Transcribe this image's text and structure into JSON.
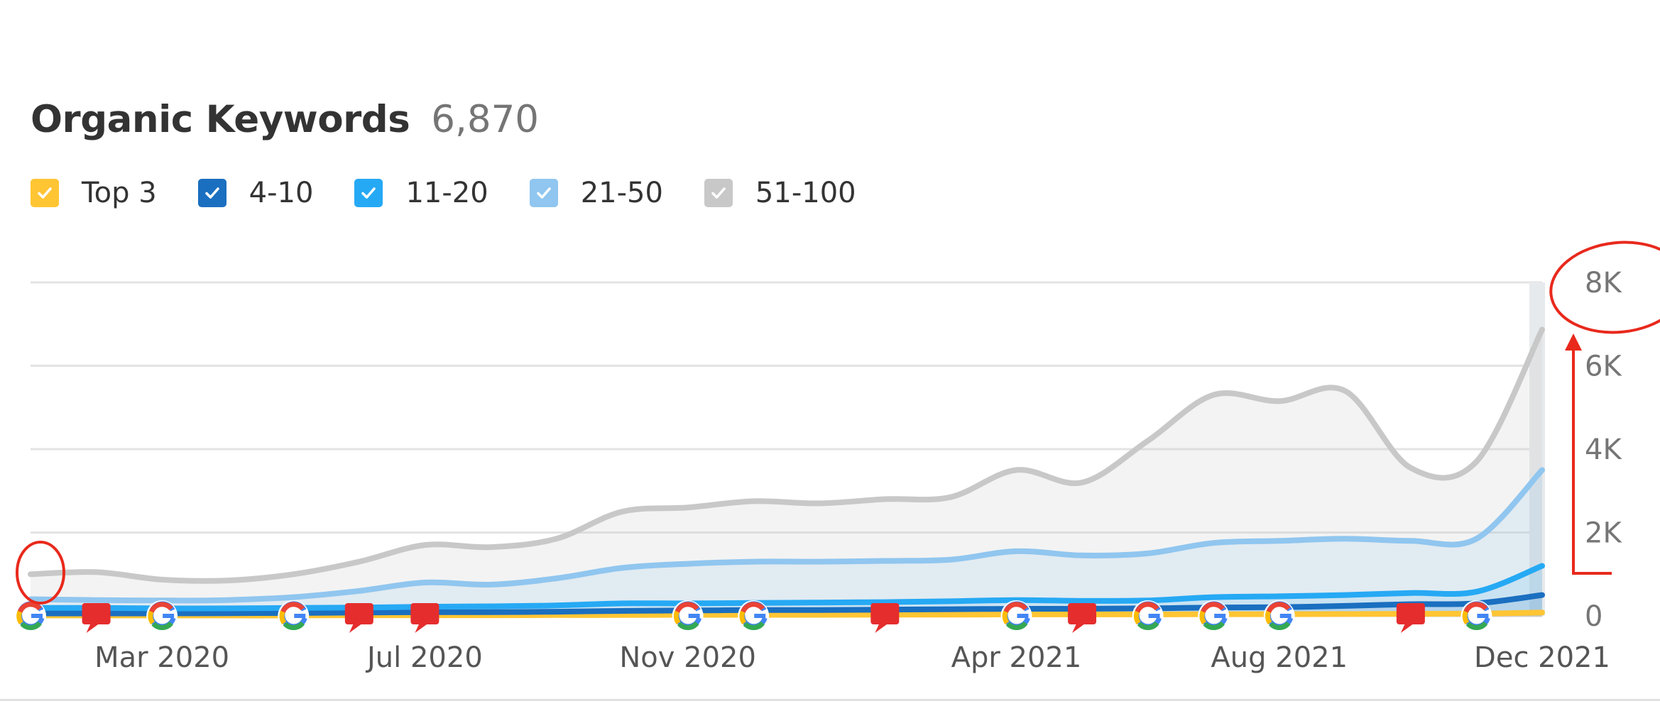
{
  "header": {
    "title": "Organic Keywords",
    "total": "6,870"
  },
  "legend": [
    {
      "label": "Top 3",
      "color": "#ffc533",
      "checked": true
    },
    {
      "label": "4-10",
      "color": "#1a6fc0",
      "checked": true
    },
    {
      "label": "11-20",
      "color": "#26a9f4",
      "checked": true
    },
    {
      "label": "21-50",
      "color": "#90c6ef",
      "checked": true
    },
    {
      "label": "51-100",
      "color": "#c8c8c8",
      "checked": true
    }
  ],
  "chart_data": {
    "type": "area",
    "title": "Organic Keywords",
    "x_ticks": [
      "Mar 2020",
      "Jul 2020",
      "Nov 2020",
      "Apr 2021",
      "Aug 2021",
      "Dec 2021"
    ],
    "y_ticks": [
      "0",
      "2K",
      "4K",
      "6K",
      "8K"
    ],
    "ylim": [
      0,
      8000
    ],
    "y_axis_side": "right",
    "grid": true,
    "x": [
      "2020-01",
      "2020-02",
      "2020-03",
      "2020-04",
      "2020-05",
      "2020-06",
      "2020-07",
      "2020-08",
      "2020-09",
      "2020-10",
      "2020-11",
      "2020-12",
      "2021-01",
      "2021-02",
      "2021-03",
      "2021-04",
      "2021-05",
      "2021-06",
      "2021-07",
      "2021-08",
      "2021-09",
      "2021-10",
      "2021-11",
      "2021-12"
    ],
    "series": [
      {
        "name": "51-100",
        "color": "#c8c8c8",
        "values": [
          1000,
          1050,
          870,
          850,
          1000,
          1300,
          1700,
          1650,
          1850,
          2500,
          2600,
          2750,
          2700,
          2800,
          2850,
          3500,
          3200,
          4200,
          5300,
          5150,
          5400,
          3550,
          3700,
          6870
        ]
      },
      {
        "name": "21-50",
        "color": "#90c6ef",
        "values": [
          400,
          380,
          370,
          380,
          450,
          600,
          800,
          750,
          900,
          1150,
          1250,
          1300,
          1300,
          1320,
          1350,
          1550,
          1450,
          1500,
          1750,
          1800,
          1850,
          1800,
          1850,
          3500
        ]
      },
      {
        "name": "11-20",
        "color": "#26a9f4",
        "values": [
          190,
          190,
          180,
          180,
          190,
          200,
          220,
          230,
          250,
          300,
          300,
          310,
          320,
          330,
          350,
          380,
          360,
          370,
          450,
          470,
          500,
          550,
          580,
          1200
        ]
      },
      {
        "name": "4-10",
        "color": "#1a6fc0",
        "values": [
          60,
          60,
          60,
          65,
          70,
          80,
          90,
          90,
          100,
          120,
          130,
          140,
          140,
          150,
          160,
          170,
          170,
          180,
          200,
          210,
          240,
          280,
          300,
          500
        ]
      },
      {
        "name": "Top 3",
        "color": "#ffc533",
        "values": [
          10,
          10,
          10,
          10,
          10,
          15,
          15,
          15,
          20,
          20,
          25,
          25,
          25,
          30,
          30,
          35,
          35,
          35,
          40,
          40,
          45,
          50,
          55,
          80
        ]
      }
    ],
    "annotations": [
      {
        "type": "google",
        "index": 0
      },
      {
        "type": "note",
        "index": 1
      },
      {
        "type": "google",
        "index": 2
      },
      {
        "type": "google",
        "index": 4
      },
      {
        "type": "note",
        "index": 5
      },
      {
        "type": "note",
        "index": 6
      },
      {
        "type": "google",
        "index": 10
      },
      {
        "type": "google",
        "index": 11
      },
      {
        "type": "note",
        "index": 13
      },
      {
        "type": "google",
        "index": 15
      },
      {
        "type": "note",
        "index": 16
      },
      {
        "type": "google",
        "index": 17
      },
      {
        "type": "google",
        "index": 18
      },
      {
        "type": "google",
        "index": 19
      },
      {
        "type": "note",
        "index": 21
      },
      {
        "type": "google",
        "index": 22
      }
    ],
    "markup": {
      "color": "#e8291c",
      "circled_items": [
        "y tick 8K",
        "start of 51-100 series"
      ],
      "arrow": "upward arrow beside the y axis pointing to 8K"
    }
  }
}
